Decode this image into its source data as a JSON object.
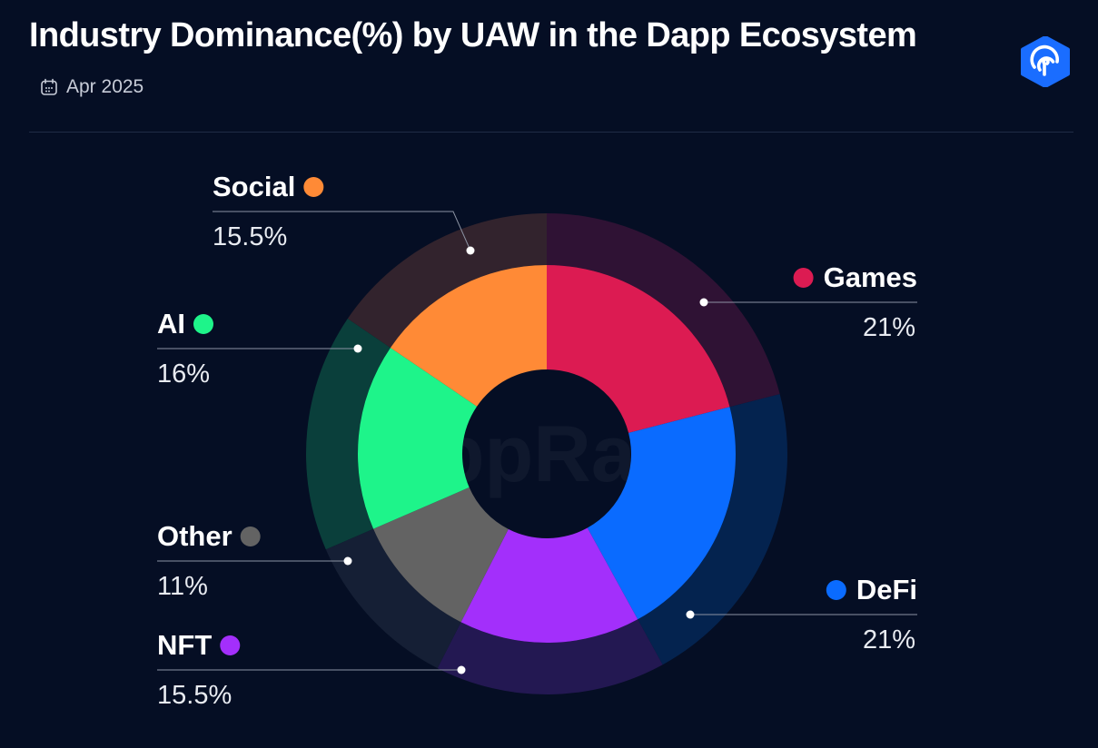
{
  "header": {
    "title": "Industry Dominance(%) by UAW in the Dapp Ecosystem",
    "date": "Apr 2025",
    "icons": {
      "date": "calendar-icon",
      "brand": "dappradar-logo-icon"
    },
    "watermark": "DappRadar"
  },
  "chart_data": {
    "type": "pie",
    "variant": "donut",
    "title": "Industry Dominance(%) by UAW in the Dapp Ecosystem",
    "categories": [
      "Games",
      "DeFi",
      "NFT",
      "Other",
      "AI",
      "Social"
    ],
    "values": [
      21,
      21,
      15.5,
      11,
      16,
      15.5
    ],
    "value_labels": [
      "21%",
      "21%",
      "15.5%",
      "11%",
      "16%",
      "15.5%"
    ],
    "colors": [
      "#dc1b52",
      "#0a6bff",
      "#a32ffb",
      "#636363",
      "#1ef48a",
      "#ff8a36"
    ],
    "outer_ring_colors": [
      "#2f1234",
      "#04234f",
      "#231852",
      "#151f35",
      "#0a3f3b",
      "#32232d"
    ],
    "start_angle": "top",
    "direction": "clockwise"
  }
}
